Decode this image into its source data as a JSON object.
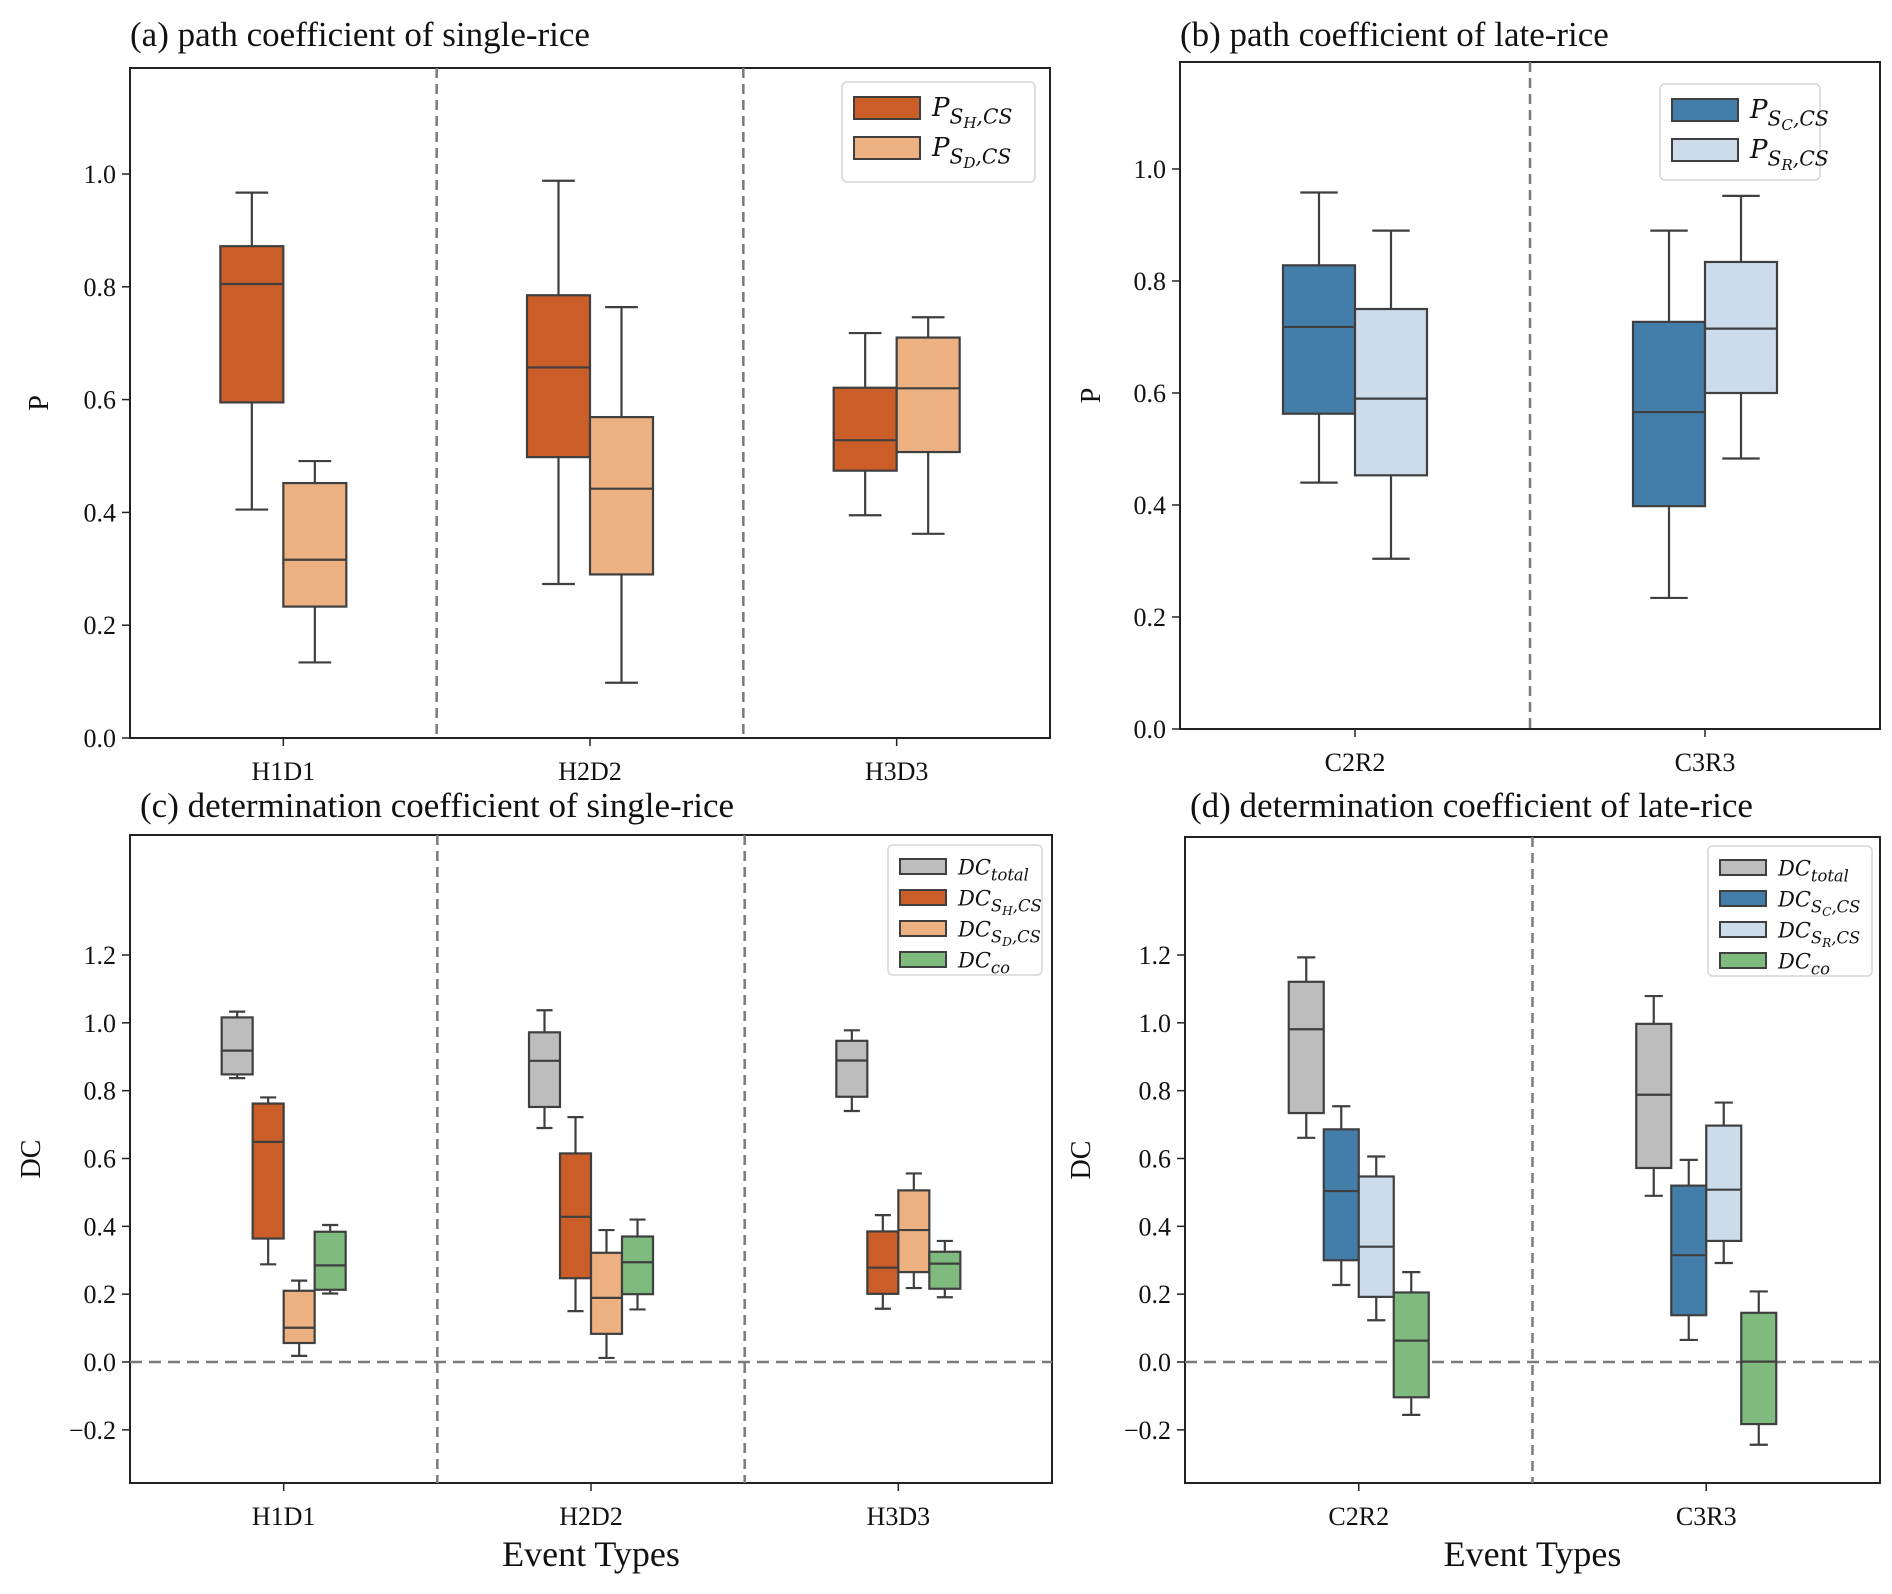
{
  "chart_data": [
    {
      "id": "a",
      "type": "box",
      "title": "(a) path coefficient of single-rice",
      "xlabel": "",
      "ylabel": "P",
      "ylim": [
        0.0,
        1.12
      ],
      "yticks": [
        "0.0",
        "0.2",
        "0.4",
        "0.6",
        "0.8",
        "1.0"
      ],
      "categories": [
        "H1D1",
        "H2D2",
        "H3D3"
      ],
      "legend_position": "top-right",
      "zero_line": false,
      "series": [
        {
          "name": "P_{S_H,CS}",
          "legend_main": "P",
          "legend_sub": "S",
          "legend_subsub": "H",
          "legend_tail": ",CS",
          "color": "#cb5d28",
          "boxes": [
            {
              "whislo": 0.405,
              "q1": 0.595,
              "med": 0.805,
              "q3": 0.872,
              "whishi": 0.967
            },
            {
              "whislo": 0.273,
              "q1": 0.498,
              "med": 0.657,
              "q3": 0.785,
              "whishi": 0.988
            },
            {
              "whislo": 0.395,
              "q1": 0.474,
              "med": 0.528,
              "q3": 0.621,
              "whishi": 0.718
            }
          ]
        },
        {
          "name": "P_{S_D,CS}",
          "legend_main": "P",
          "legend_sub": "S",
          "legend_subsub": "D",
          "legend_tail": ",CS",
          "color": "#ecb081",
          "boxes": [
            {
              "whislo": 0.134,
              "q1": 0.233,
              "med": 0.316,
              "q3": 0.452,
              "whishi": 0.491
            },
            {
              "whislo": 0.098,
              "q1": 0.29,
              "med": 0.442,
              "q3": 0.569,
              "whishi": 0.764
            },
            {
              "whislo": 0.362,
              "q1": 0.507,
              "med": 0.62,
              "q3": 0.71,
              "whishi": 0.746
            }
          ]
        }
      ]
    },
    {
      "id": "b",
      "type": "box",
      "title": "(b) path coefficient of late-rice",
      "xlabel": "",
      "ylabel": "P",
      "ylim": [
        0.0,
        1.12
      ],
      "yticks": [
        "0.0",
        "0.2",
        "0.4",
        "0.6",
        "0.8",
        "1.0"
      ],
      "categories": [
        "C2R2",
        "C3R3"
      ],
      "legend_position": "top-right",
      "zero_line": false,
      "series": [
        {
          "name": "P_{S_C,CS}",
          "legend_main": "P",
          "legend_sub": "S",
          "legend_subsub": "C",
          "legend_tail": ",CS",
          "color": "#437eab",
          "boxes": [
            {
              "whislo": 0.44,
              "q1": 0.563,
              "med": 0.718,
              "q3": 0.828,
              "whishi": 0.958
            },
            {
              "whislo": 0.234,
              "q1": 0.398,
              "med": 0.566,
              "q3": 0.727,
              "whishi": 0.89
            }
          ]
        },
        {
          "name": "P_{S_R,CS}",
          "legend_main": "P",
          "legend_sub": "S",
          "legend_subsub": "R",
          "legend_tail": ",CS",
          "color": "#ccdceb",
          "boxes": [
            {
              "whislo": 0.304,
              "q1": 0.453,
              "med": 0.59,
              "q3": 0.75,
              "whishi": 0.89
            },
            {
              "whislo": 0.483,
              "q1": 0.6,
              "med": 0.715,
              "q3": 0.834,
              "whishi": 0.952
            }
          ]
        }
      ]
    },
    {
      "id": "c",
      "type": "box",
      "title": "(c) determination coefficient of single-rice",
      "xlabel": "Event Types",
      "ylabel": "DC",
      "ylim": [
        -0.3,
        1.31
      ],
      "yticks": [
        "−0.2",
        "0.0",
        "0.2",
        "0.4",
        "0.6",
        "0.8",
        "1.0",
        "1.2"
      ],
      "categories": [
        "H1D1",
        "H2D2",
        "H3D3"
      ],
      "legend_position": "top-right",
      "zero_line": true,
      "series": [
        {
          "name": "DC_{total}",
          "legend_main": "DC",
          "legend_sub": "total",
          "legend_subsub": "",
          "legend_tail": "",
          "color": "#bdbdbd",
          "boxes": [
            {
              "whislo": 0.837,
              "q1": 0.848,
              "med": 0.918,
              "q3": 1.016,
              "whishi": 1.033
            },
            {
              "whislo": 0.69,
              "q1": 0.752,
              "med": 0.888,
              "q3": 0.972,
              "whishi": 1.037
            },
            {
              "whislo": 0.74,
              "q1": 0.782,
              "med": 0.889,
              "q3": 0.947,
              "whishi": 0.978
            }
          ]
        },
        {
          "name": "DC_{S_H,CS}",
          "legend_main": "DC",
          "legend_sub": "S",
          "legend_subsub": "H",
          "legend_tail": ",CS",
          "color": "#cb5d28",
          "boxes": [
            {
              "whislo": 0.288,
              "q1": 0.364,
              "med": 0.649,
              "q3": 0.762,
              "whishi": 0.78
            },
            {
              "whislo": 0.15,
              "q1": 0.247,
              "med": 0.428,
              "q3": 0.615,
              "whishi": 0.722
            },
            {
              "whislo": 0.157,
              "q1": 0.201,
              "med": 0.278,
              "q3": 0.385,
              "whishi": 0.433
            }
          ]
        },
        {
          "name": "DC_{S_D,CS}",
          "legend_main": "DC",
          "legend_sub": "S",
          "legend_subsub": "D",
          "legend_tail": ",CS",
          "color": "#ecb081",
          "boxes": [
            {
              "whislo": 0.018,
              "q1": 0.056,
              "med": 0.101,
              "q3": 0.21,
              "whishi": 0.24
            },
            {
              "whislo": 0.012,
              "q1": 0.083,
              "med": 0.189,
              "q3": 0.322,
              "whishi": 0.389
            },
            {
              "whislo": 0.218,
              "q1": 0.265,
              "med": 0.389,
              "q3": 0.506,
              "whishi": 0.556
            }
          ]
        },
        {
          "name": "DC_{co}",
          "legend_main": "DC",
          "legend_sub": "co",
          "legend_subsub": "",
          "legend_tail": "",
          "color": "#7fbb7f",
          "boxes": [
            {
              "whislo": 0.202,
              "q1": 0.213,
              "med": 0.285,
              "q3": 0.384,
              "whishi": 0.404
            },
            {
              "whislo": 0.155,
              "q1": 0.2,
              "med": 0.294,
              "q3": 0.37,
              "whishi": 0.42
            },
            {
              "whislo": 0.191,
              "q1": 0.216,
              "med": 0.29,
              "q3": 0.325,
              "whishi": 0.357
            }
          ]
        }
      ]
    },
    {
      "id": "d",
      "type": "box",
      "title": "(d) determination coefficient of late-rice",
      "xlabel": "Event Types",
      "ylabel": "DC",
      "ylim": [
        -0.3,
        1.31
      ],
      "yticks": [
        "−0.2",
        "0.0",
        "0.2",
        "0.4",
        "0.6",
        "0.8",
        "1.0",
        "1.2"
      ],
      "categories": [
        "C2R2",
        "C3R3"
      ],
      "legend_position": "top-right",
      "zero_line": true,
      "series": [
        {
          "name": "DC_{total}",
          "legend_main": "DC",
          "legend_sub": "total",
          "legend_subsub": "",
          "legend_tail": "",
          "color": "#bdbdbd",
          "boxes": [
            {
              "whislo": 0.661,
              "q1": 0.734,
              "med": 0.981,
              "q3": 1.121,
              "whishi": 1.193
            },
            {
              "whislo": 0.49,
              "q1": 0.572,
              "med": 0.788,
              "q3": 0.997,
              "whishi": 1.079
            }
          ]
        },
        {
          "name": "DC_{S_C,CS}",
          "legend_main": "DC",
          "legend_sub": "S",
          "legend_subsub": "C",
          "legend_tail": ",CS",
          "color": "#437eab",
          "boxes": [
            {
              "whislo": 0.227,
              "q1": 0.3,
              "med": 0.504,
              "q3": 0.686,
              "whishi": 0.754
            },
            {
              "whislo": 0.065,
              "q1": 0.138,
              "med": 0.315,
              "q3": 0.52,
              "whishi": 0.596
            }
          ]
        },
        {
          "name": "DC_{S_R,CS}",
          "legend_main": "DC",
          "legend_sub": "S",
          "legend_subsub": "R",
          "legend_tail": ",CS",
          "color": "#ccdceb",
          "boxes": [
            {
              "whislo": 0.123,
              "q1": 0.192,
              "med": 0.34,
              "q3": 0.547,
              "whishi": 0.606
            },
            {
              "whislo": 0.292,
              "q1": 0.357,
              "med": 0.508,
              "q3": 0.697,
              "whishi": 0.765
            }
          ]
        },
        {
          "name": "DC_{co}",
          "legend_main": "DC",
          "legend_sub": "co",
          "legend_subsub": "",
          "legend_tail": "",
          "color": "#7fbb7f",
          "boxes": [
            {
              "whislo": -0.156,
              "q1": -0.104,
              "med": 0.063,
              "q3": 0.205,
              "whishi": 0.265
            },
            {
              "whislo": -0.244,
              "q1": -0.183,
              "med": 0.001,
              "q3": 0.145,
              "whishi": 0.208
            }
          ]
        }
      ]
    }
  ],
  "colors": {
    "edge": "#3f3f3f",
    "axis": "#222222",
    "divider": "#7a7a7a"
  }
}
